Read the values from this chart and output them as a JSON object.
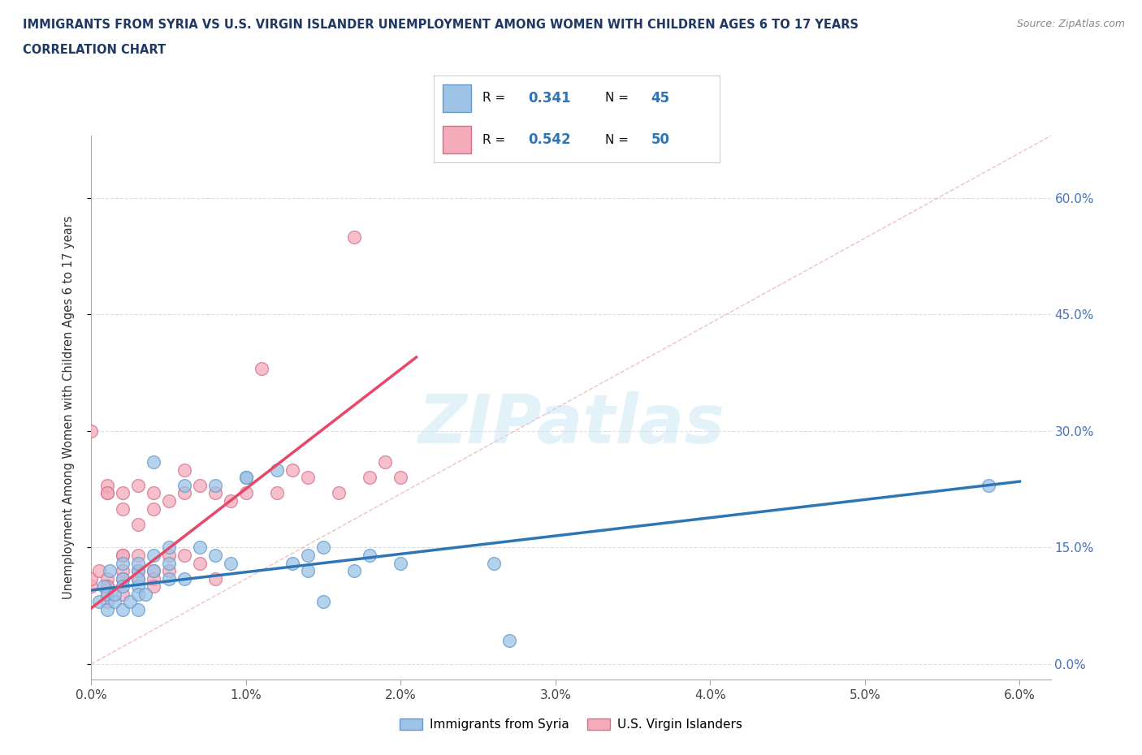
{
  "title_line1": "IMMIGRANTS FROM SYRIA VS U.S. VIRGIN ISLANDER UNEMPLOYMENT AMONG WOMEN WITH CHILDREN AGES 6 TO 17 YEARS",
  "title_line2": "CORRELATION CHART",
  "source_text": "Source: ZipAtlas.com",
  "ylabel": "Unemployment Among Women with Children Ages 6 to 17 years",
  "xlim": [
    0.0,
    0.062
  ],
  "ylim": [
    -0.02,
    0.68
  ],
  "xticks": [
    0.0,
    0.01,
    0.02,
    0.03,
    0.04,
    0.05,
    0.06
  ],
  "xticklabels": [
    "0.0%",
    "1.0%",
    "2.0%",
    "3.0%",
    "4.0%",
    "5.0%",
    "6.0%"
  ],
  "yticks": [
    0.0,
    0.15,
    0.3,
    0.45,
    0.6
  ],
  "right_yticklabels": [
    "0.0%",
    "15.0%",
    "30.0%",
    "45.0%",
    "60.0%"
  ],
  "color_syria": "#9DC3E6",
  "color_virgin": "#F4ABBA",
  "color_syria_line": "#2E75B6",
  "color_virgin_line": "#E8476A",
  "color_diag": "#F0B0B0",
  "watermark": "ZIPatlas",
  "syria_x": [
    0.0005,
    0.0008,
    0.001,
    0.001,
    0.0012,
    0.0015,
    0.0015,
    0.002,
    0.002,
    0.002,
    0.002,
    0.0025,
    0.003,
    0.003,
    0.003,
    0.003,
    0.003,
    0.003,
    0.0035,
    0.004,
    0.004,
    0.004,
    0.005,
    0.005,
    0.005,
    0.006,
    0.006,
    0.007,
    0.008,
    0.008,
    0.009,
    0.01,
    0.01,
    0.012,
    0.013,
    0.014,
    0.014,
    0.015,
    0.015,
    0.017,
    0.018,
    0.02,
    0.026,
    0.027,
    0.058
  ],
  "syria_y": [
    0.08,
    0.1,
    0.09,
    0.07,
    0.12,
    0.08,
    0.09,
    0.11,
    0.1,
    0.13,
    0.07,
    0.08,
    0.12,
    0.1,
    0.09,
    0.11,
    0.13,
    0.07,
    0.09,
    0.14,
    0.12,
    0.26,
    0.15,
    0.13,
    0.11,
    0.23,
    0.11,
    0.15,
    0.23,
    0.14,
    0.13,
    0.24,
    0.24,
    0.25,
    0.13,
    0.14,
    0.12,
    0.08,
    0.15,
    0.12,
    0.14,
    0.13,
    0.13,
    0.03,
    0.23
  ],
  "virgin_x": [
    0.0,
    0.0,
    0.0,
    0.0005,
    0.001,
    0.001,
    0.001,
    0.001,
    0.001,
    0.001,
    0.001,
    0.001,
    0.002,
    0.002,
    0.002,
    0.002,
    0.002,
    0.002,
    0.002,
    0.003,
    0.003,
    0.003,
    0.003,
    0.003,
    0.004,
    0.004,
    0.004,
    0.004,
    0.004,
    0.005,
    0.005,
    0.005,
    0.006,
    0.006,
    0.006,
    0.007,
    0.007,
    0.008,
    0.008,
    0.009,
    0.01,
    0.011,
    0.012,
    0.013,
    0.014,
    0.016,
    0.017,
    0.018,
    0.019,
    0.02
  ],
  "virgin_y": [
    0.1,
    0.11,
    0.3,
    0.12,
    0.1,
    0.22,
    0.23,
    0.11,
    0.09,
    0.1,
    0.22,
    0.08,
    0.14,
    0.2,
    0.12,
    0.22,
    0.14,
    0.09,
    0.11,
    0.23,
    0.12,
    0.18,
    0.14,
    0.11,
    0.22,
    0.2,
    0.12,
    0.11,
    0.1,
    0.21,
    0.14,
    0.12,
    0.22,
    0.25,
    0.14,
    0.23,
    0.13,
    0.22,
    0.11,
    0.21,
    0.22,
    0.38,
    0.22,
    0.25,
    0.24,
    0.22,
    0.55,
    0.24,
    0.26,
    0.24
  ],
  "syria_trend_x": [
    0.0,
    0.06
  ],
  "syria_trend_y": [
    0.095,
    0.235
  ],
  "virgin_trend_x": [
    0.0,
    0.021
  ],
  "virgin_trend_y": [
    0.072,
    0.395
  ],
  "background_color": "#FFFFFF",
  "grid_color": "#DDDDDD"
}
